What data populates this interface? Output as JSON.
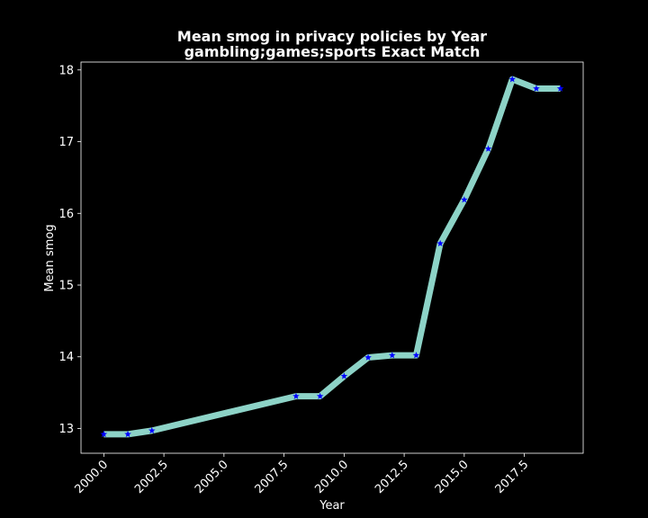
{
  "chart_data": {
    "type": "line",
    "title_line1": "Mean smog in privacy policies by Year",
    "title_line2": "gambling;games;sports Exact Match",
    "xlabel": "Year",
    "ylabel": "Mean smog",
    "x": [
      2000,
      2001,
      2002,
      2008,
      2009,
      2010,
      2011,
      2012,
      2013,
      2014,
      2015,
      2016,
      2017,
      2018,
      2019
    ],
    "series": [
      {
        "name": "Mean smog",
        "values": [
          12.92,
          12.92,
          12.97,
          13.45,
          13.45,
          13.73,
          13.99,
          14.02,
          14.02,
          15.58,
          16.19,
          16.9,
          17.87,
          17.74,
          17.74
        ]
      }
    ],
    "xlim": [
      1999.05,
      2019.95
    ],
    "ylim": [
      12.655,
      18.11
    ],
    "xticks": [
      2000,
      2002.5,
      2005,
      2007.5,
      2010,
      2012.5,
      2015,
      2017.5
    ],
    "xtick_labels": [
      "2000.0",
      "2002.5",
      "2005.0",
      "2007.5",
      "2010.0",
      "2012.5",
      "2015.0",
      "2017.5"
    ],
    "yticks": [
      13,
      14,
      15,
      16,
      17,
      18
    ],
    "ytick_labels": [
      "13",
      "14",
      "15",
      "16",
      "17",
      "18"
    ],
    "grid": false,
    "colors": {
      "background": "#000000",
      "line": "#8dd3c7",
      "marker": "#0000ff",
      "axes": "#ffffff",
      "text": "#ffffff"
    },
    "marker": "star"
  }
}
